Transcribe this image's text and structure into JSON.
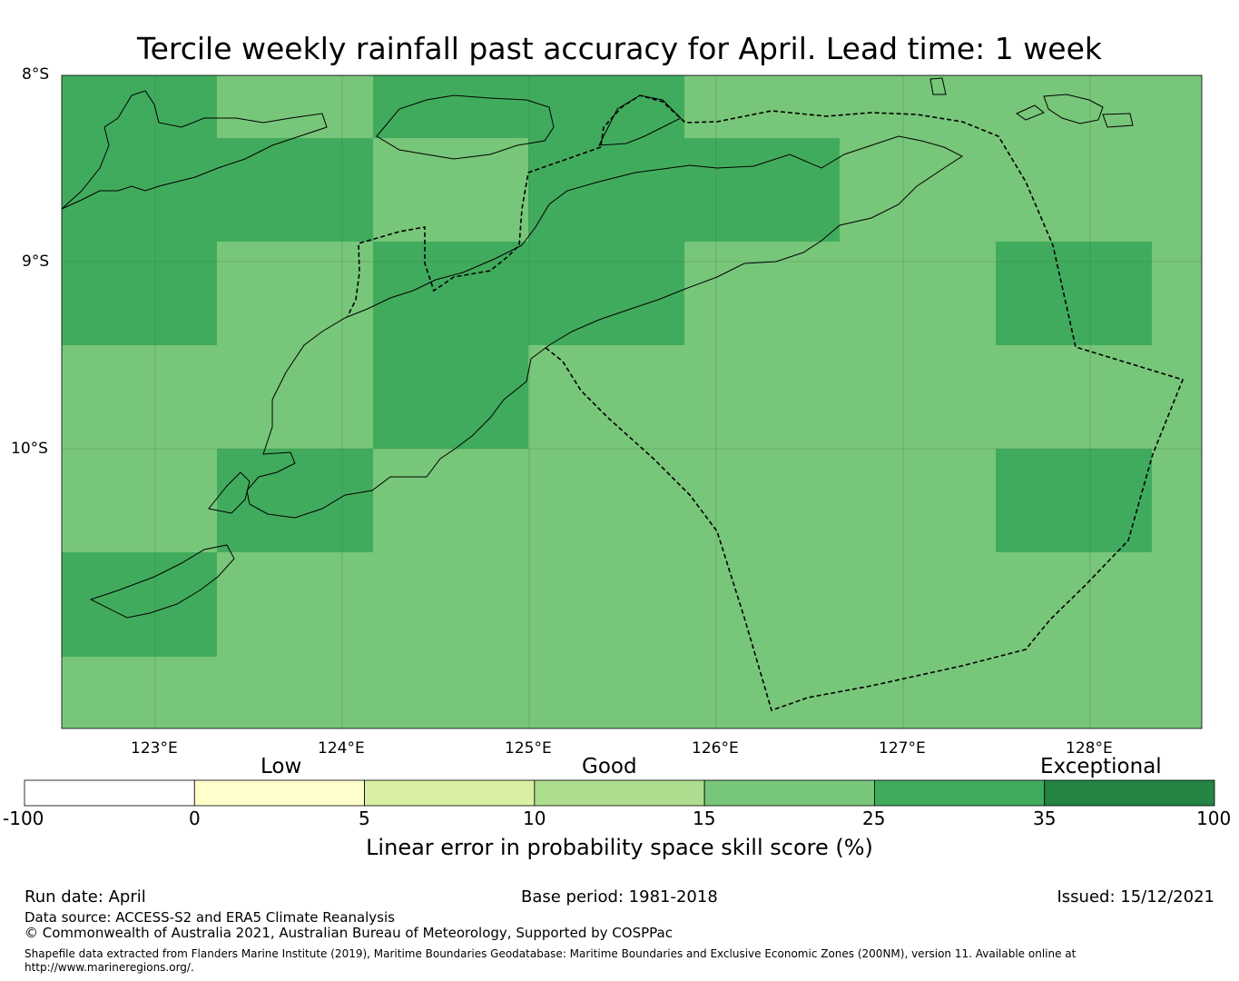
{
  "title": "Tercile weekly rainfall past accuracy for April. Lead time: 1 week",
  "map": {
    "lat_labels": [
      "8°S",
      "9°S",
      "10°S"
    ],
    "lon_labels": [
      "123°E",
      "124°E",
      "125°E",
      "126°E",
      "127°E",
      "128°E"
    ],
    "cell_colors": {
      "light": "#78c679",
      "dark": "#41ab5d"
    },
    "grid_cells": [
      {
        "col": 0,
        "row": 0,
        "skill": "dark"
      },
      {
        "col": 1,
        "row": 0,
        "skill": "light"
      },
      {
        "col": 2,
        "row": 0,
        "skill": "dark"
      },
      {
        "col": 3,
        "row": 0,
        "skill": "dark"
      },
      {
        "col": 4,
        "row": 0,
        "skill": "light"
      },
      {
        "col": 5,
        "row": 0,
        "skill": "light"
      },
      {
        "col": 6,
        "row": 0,
        "skill": "light"
      },
      {
        "col": 7,
        "row": 0,
        "skill": "light"
      },
      {
        "col": 0,
        "row": 1,
        "skill": "dark"
      },
      {
        "col": 1,
        "row": 1,
        "skill": "dark"
      },
      {
        "col": 2,
        "row": 1,
        "skill": "light"
      },
      {
        "col": 3,
        "row": 1,
        "skill": "dark"
      },
      {
        "col": 4,
        "row": 1,
        "skill": "dark"
      },
      {
        "col": 5,
        "row": 1,
        "skill": "light"
      },
      {
        "col": 6,
        "row": 1,
        "skill": "light"
      },
      {
        "col": 7,
        "row": 1,
        "skill": "light"
      },
      {
        "col": 0,
        "row": 2,
        "skill": "dark"
      },
      {
        "col": 1,
        "row": 2,
        "skill": "light"
      },
      {
        "col": 2,
        "row": 2,
        "skill": "dark"
      },
      {
        "col": 3,
        "row": 2,
        "skill": "dark"
      },
      {
        "col": 4,
        "row": 2,
        "skill": "light"
      },
      {
        "col": 5,
        "row": 2,
        "skill": "light"
      },
      {
        "col": 6,
        "row": 2,
        "skill": "dark"
      },
      {
        "col": 7,
        "row": 2,
        "skill": "light"
      },
      {
        "col": 0,
        "row": 3,
        "skill": "light"
      },
      {
        "col": 1,
        "row": 3,
        "skill": "light"
      },
      {
        "col": 2,
        "row": 3,
        "skill": "dark"
      },
      {
        "col": 3,
        "row": 3,
        "skill": "light"
      },
      {
        "col": 4,
        "row": 3,
        "skill": "light"
      },
      {
        "col": 5,
        "row": 3,
        "skill": "light"
      },
      {
        "col": 6,
        "row": 3,
        "skill": "light"
      },
      {
        "col": 7,
        "row": 3,
        "skill": "light"
      },
      {
        "col": 0,
        "row": 4,
        "skill": "light"
      },
      {
        "col": 1,
        "row": 4,
        "skill": "dark"
      },
      {
        "col": 2,
        "row": 4,
        "skill": "light"
      },
      {
        "col": 3,
        "row": 4,
        "skill": "light"
      },
      {
        "col": 4,
        "row": 4,
        "skill": "light"
      },
      {
        "col": 5,
        "row": 4,
        "skill": "light"
      },
      {
        "col": 6,
        "row": 4,
        "skill": "dark"
      },
      {
        "col": 7,
        "row": 4,
        "skill": "light"
      },
      {
        "col": 0,
        "row": 5,
        "skill": "dark"
      },
      {
        "col": 1,
        "row": 5,
        "skill": "light"
      },
      {
        "col": 2,
        "row": 5,
        "skill": "light"
      },
      {
        "col": 3,
        "row": 5,
        "skill": "light"
      },
      {
        "col": 4,
        "row": 5,
        "skill": "light"
      },
      {
        "col": 5,
        "row": 5,
        "skill": "light"
      },
      {
        "col": 6,
        "row": 5,
        "skill": "light"
      },
      {
        "col": 7,
        "row": 5,
        "skill": "light"
      },
      {
        "col": 0,
        "row": 6,
        "skill": "light"
      },
      {
        "col": 1,
        "row": 6,
        "skill": "light"
      },
      {
        "col": 2,
        "row": 6,
        "skill": "light"
      },
      {
        "col": 3,
        "row": 6,
        "skill": "light"
      },
      {
        "col": 4,
        "row": 6,
        "skill": "light"
      },
      {
        "col": 5,
        "row": 6,
        "skill": "light"
      },
      {
        "col": 6,
        "row": 6,
        "skill": "light"
      },
      {
        "col": 7,
        "row": 6,
        "skill": "light"
      }
    ]
  },
  "colorbar": {
    "categories": [
      "Low",
      "Good",
      "Exceptional"
    ],
    "ticks": [
      "-100",
      "0",
      "5",
      "10",
      "15",
      "25",
      "35",
      "100"
    ],
    "colors": [
      "#ffffff",
      "#ffffcc",
      "#d9f0a3",
      "#addd8e",
      "#78c679",
      "#41ab5d",
      "#238443"
    ],
    "label": "Linear error in probability space skill score (%)"
  },
  "footer": {
    "run_date": "Run date: April",
    "base_period": "Base period: 1981-2018",
    "issued": "Issued: 15/12/2021",
    "data_source": "Data source: ACCESS-S2 and ERA5 Climate Reanalysis",
    "copyright": "© Commonwealth of Australia 2021, Australian Bureau of Meteorology, Supported by COSPPac",
    "shapefile_line1": "Shapefile data extracted from Flanders Marine Institute (2019), Maritime Boundaries Geodatabase: Maritime Boundaries and Exclusive Economic Zones (200NM), version 11. Available online at",
    "shapefile_line2": "http://www.marineregions.org/."
  }
}
